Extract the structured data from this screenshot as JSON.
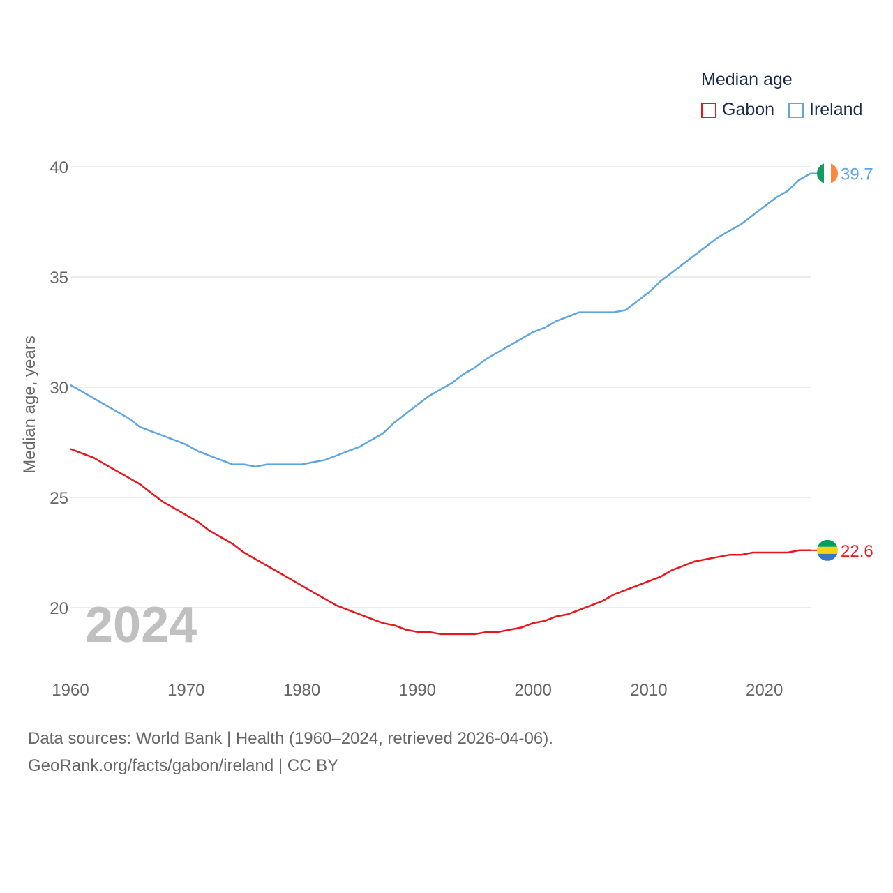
{
  "legend": {
    "title": "Median age",
    "items": [
      {
        "label": "Gabon",
        "color": "#e8171b"
      },
      {
        "label": "Ireland",
        "color": "#5fa6e0"
      }
    ]
  },
  "year_watermark": "2024",
  "footer": {
    "line1": "Data sources: World Bank | Health (1960–2024, retrieved 2026-04-06).",
    "line2": "GeoRank.org/facts/gabon/ireland | CC BY"
  },
  "chart_data": {
    "type": "line",
    "title": "Median age",
    "xlabel": "",
    "ylabel": "Median age, years",
    "xlim": [
      1960,
      2024
    ],
    "ylim": [
      18,
      41
    ],
    "x_ticks": [
      1960,
      1970,
      1980,
      1990,
      2000,
      2010,
      2020
    ],
    "y_ticks": [
      20,
      25,
      30,
      35,
      40
    ],
    "grid": true,
    "legend_position": "top-right",
    "x": [
      1960,
      1961,
      1962,
      1963,
      1964,
      1965,
      1966,
      1967,
      1968,
      1969,
      1970,
      1971,
      1972,
      1973,
      1974,
      1975,
      1976,
      1977,
      1978,
      1979,
      1980,
      1981,
      1982,
      1983,
      1984,
      1985,
      1986,
      1987,
      1988,
      1989,
      1990,
      1991,
      1992,
      1993,
      1994,
      1995,
      1996,
      1997,
      1998,
      1999,
      2000,
      2001,
      2002,
      2003,
      2004,
      2005,
      2006,
      2007,
      2008,
      2009,
      2010,
      2011,
      2012,
      2013,
      2014,
      2015,
      2016,
      2017,
      2018,
      2019,
      2020,
      2021,
      2022,
      2023,
      2024
    ],
    "series": [
      {
        "name": "Gabon",
        "color": "#e8171b",
        "end_label": "22.6",
        "values": [
          27.2,
          27.0,
          26.8,
          26.5,
          26.2,
          25.9,
          25.6,
          25.2,
          24.8,
          24.5,
          24.2,
          23.9,
          23.5,
          23.2,
          22.9,
          22.5,
          22.2,
          21.9,
          21.6,
          21.3,
          21.0,
          20.7,
          20.4,
          20.1,
          19.9,
          19.7,
          19.5,
          19.3,
          19.2,
          19.0,
          18.9,
          18.9,
          18.8,
          18.8,
          18.8,
          18.8,
          18.9,
          18.9,
          19.0,
          19.1,
          19.3,
          19.4,
          19.6,
          19.7,
          19.9,
          20.1,
          20.3,
          20.6,
          20.8,
          21.0,
          21.2,
          21.4,
          21.7,
          21.9,
          22.1,
          22.2,
          22.3,
          22.4,
          22.4,
          22.5,
          22.5,
          22.5,
          22.5,
          22.6,
          22.6
        ]
      },
      {
        "name": "Ireland",
        "color": "#5fa6e0",
        "end_label": "39.7",
        "values": [
          30.1,
          29.8,
          29.5,
          29.2,
          28.9,
          28.6,
          28.2,
          28.0,
          27.8,
          27.6,
          27.4,
          27.1,
          26.9,
          26.7,
          26.5,
          26.5,
          26.4,
          26.5,
          26.5,
          26.5,
          26.5,
          26.6,
          26.7,
          26.9,
          27.1,
          27.3,
          27.6,
          27.9,
          28.4,
          28.8,
          29.2,
          29.6,
          29.9,
          30.2,
          30.6,
          30.9,
          31.3,
          31.6,
          31.9,
          32.2,
          32.5,
          32.7,
          33.0,
          33.2,
          33.4,
          33.4,
          33.4,
          33.4,
          33.5,
          33.9,
          34.3,
          34.8,
          35.2,
          35.6,
          36.0,
          36.4,
          36.8,
          37.1,
          37.4,
          37.8,
          38.2,
          38.6,
          38.9,
          39.4,
          39.7
        ]
      }
    ]
  }
}
